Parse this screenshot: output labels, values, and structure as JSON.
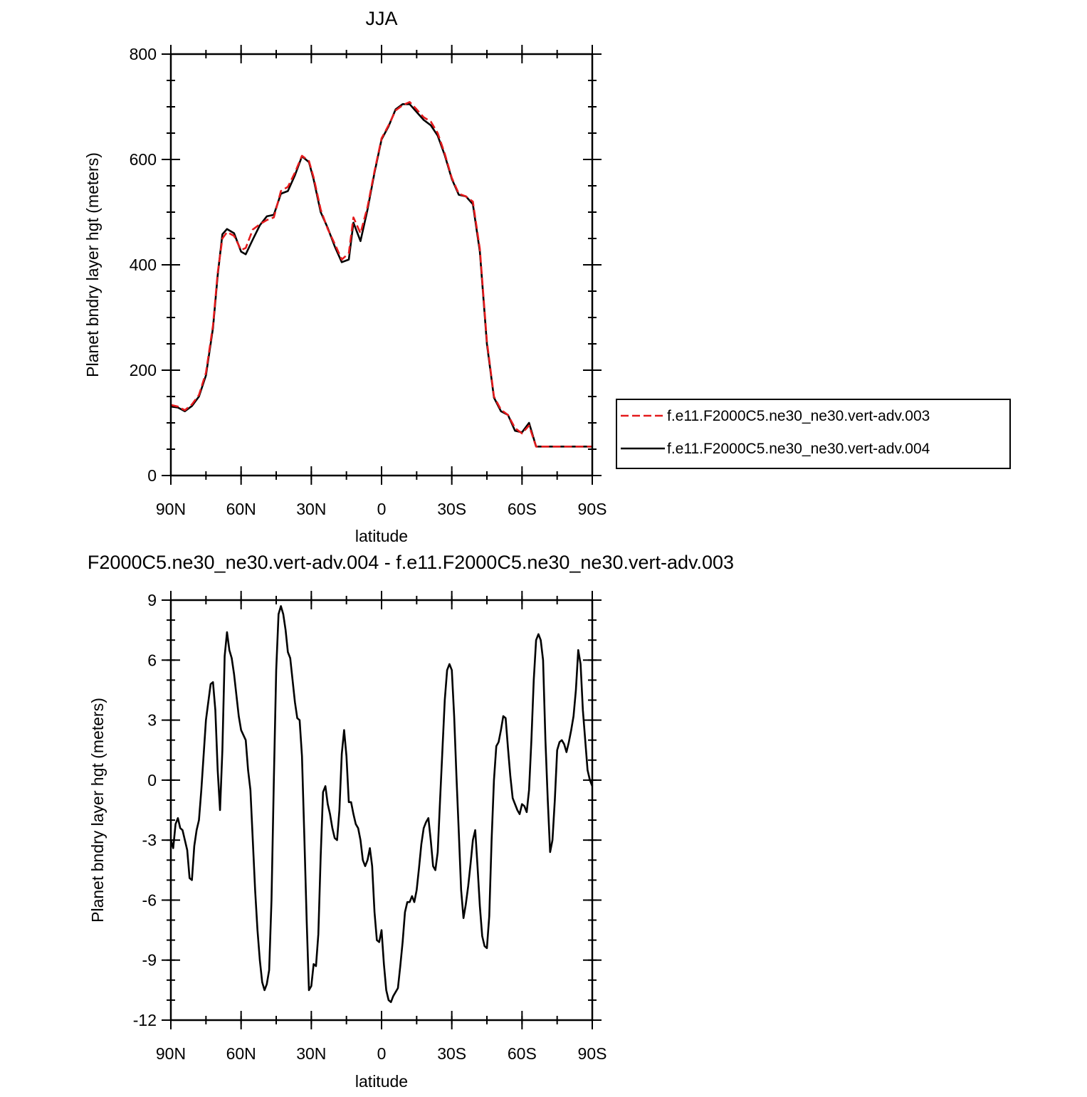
{
  "chart_data": [
    {
      "type": "line",
      "title": "JJA",
      "xlabel": "latitude",
      "ylabel": "Planet bndry layer hgt (meters)",
      "x_tick_labels": [
        "90N",
        "60N",
        "30N",
        "0",
        "30S",
        "60S",
        "90S"
      ],
      "x_ticks": [
        90,
        60,
        30,
        0,
        -30,
        -60,
        -90
      ],
      "xlim": [
        90,
        -90
      ],
      "y_ticks": [
        0,
        200,
        400,
        600,
        800
      ],
      "y_tick_labels": [
        "0",
        "200",
        "400",
        "600",
        "800"
      ],
      "ylim": [
        0,
        800
      ],
      "legend_position": "right",
      "x": [
        90,
        87,
        84,
        81,
        78,
        75,
        72,
        70,
        68,
        66,
        63,
        60,
        58,
        55,
        52,
        49,
        46,
        43,
        40,
        37,
        34,
        31,
        29,
        26,
        23,
        20,
        17,
        14,
        12,
        9,
        6,
        3,
        0,
        -3,
        -6,
        -9,
        -12,
        -15,
        -18,
        -21,
        -24,
        -27,
        -30,
        -33,
        -36,
        -39,
        -42,
        -45,
        -48,
        -51,
        -54,
        -57,
        -60,
        -63,
        -66,
        -69,
        -72,
        -75,
        -78,
        -81,
        -84,
        -87,
        -90
      ],
      "series": [
        {
          "name": "f.e11.F2000C5.ne30_ne30.vert-adv.003",
          "color": "#e41a1c",
          "dash": "dashed",
          "values": [
            134,
            131,
            124,
            135,
            153,
            195,
            285,
            385,
            450,
            462,
            455,
            428,
            432,
            467,
            477,
            485,
            490,
            540,
            548,
            575,
            607,
            597,
            566,
            505,
            468,
            440,
            410,
            422,
            490,
            460,
            510,
            578,
            640,
            665,
            693,
            703,
            709,
            695,
            680,
            672,
            650,
            611,
            565,
            535,
            530,
            520,
            430,
            255,
            150,
            125,
            115,
            90,
            80,
            95,
            55,
            55,
            55,
            55,
            55,
            55,
            55,
            55,
            55
          ]
        },
        {
          "name": "f.e11.F2000C5.ne30_ne30.vert-adv.004",
          "color": "#000000",
          "dash": "solid",
          "values": [
            131,
            129,
            122,
            132,
            150,
            190,
            280,
            380,
            458,
            468,
            460,
            425,
            420,
            448,
            475,
            492,
            495,
            535,
            540,
            570,
            606,
            595,
            562,
            500,
            470,
            435,
            405,
            410,
            480,
            445,
            505,
            575,
            638,
            663,
            695,
            705,
            705,
            690,
            675,
            665,
            645,
            608,
            563,
            533,
            530,
            515,
            425,
            250,
            148,
            122,
            115,
            85,
            82,
            100,
            55,
            55,
            55,
            55,
            55,
            55,
            55,
            55,
            55
          ]
        }
      ]
    },
    {
      "type": "line",
      "title": "F2000C5.ne30_ne30.vert-adv.004 - f.e11.F2000C5.ne30_ne30.vert-adv.003",
      "xlabel": "latitude",
      "ylabel": "Planet bndry layer hgt (meters)",
      "x_tick_labels": [
        "90N",
        "60N",
        "30N",
        "0",
        "30S",
        "60S",
        "90S"
      ],
      "x_ticks": [
        90,
        60,
        30,
        0,
        -30,
        -60,
        -90
      ],
      "xlim": [
        90,
        -90
      ],
      "y_ticks": [
        9,
        6,
        3,
        0,
        -3,
        -6,
        -9,
        -12
      ],
      "y_tick_labels": [
        "9",
        "6",
        "3",
        "0",
        "-3",
        "-6",
        "-9",
        "-12"
      ],
      "ylim": [
        -12,
        9
      ],
      "x": [
        90,
        89,
        88,
        87,
        86,
        85,
        83,
        82,
        81,
        80,
        79,
        78,
        77,
        75,
        73,
        72,
        71,
        70,
        69,
        68,
        67,
        66,
        65,
        64,
        63,
        61,
        60,
        58,
        57,
        56,
        55,
        54,
        53,
        52,
        51,
        50,
        49,
        48,
        47,
        46,
        45,
        44,
        43,
        42,
        41,
        40,
        39,
        38,
        37,
        36,
        35,
        34,
        33,
        32,
        31,
        30,
        29,
        28,
        27,
        26,
        25,
        24,
        23,
        22,
        21,
        20,
        19,
        18,
        17,
        16,
        15,
        14,
        13,
        12,
        11,
        10,
        9,
        8,
        7,
        6,
        5,
        4,
        3,
        2,
        1,
        0,
        -1,
        -2,
        -3,
        -4,
        -5,
        -6,
        -7,
        -8,
        -9,
        -10,
        -11,
        -12,
        -13,
        -14,
        -15,
        -16,
        -17,
        -18,
        -19,
        -20,
        -21,
        -22,
        -23,
        -24,
        -25,
        -26,
        -27,
        -28,
        -29,
        -30,
        -31,
        -32,
        -33,
        -34,
        -35,
        -36,
        -37,
        -38,
        -39,
        -40,
        -41,
        -42,
        -43,
        -44,
        -45,
        -46,
        -47,
        -48,
        -49,
        -50,
        -51,
        -52,
        -53,
        -54,
        -55,
        -56,
        -57,
        -58,
        -59,
        -60,
        -61,
        -62,
        -63,
        -64,
        -65,
        -66,
        -67,
        -68,
        -69,
        -70,
        -71,
        -72,
        -73,
        -74,
        -75,
        -76,
        -77,
        -78,
        -79,
        -80,
        -81,
        -82,
        -83,
        -84,
        -85,
        -86,
        -87,
        -88,
        -89,
        -90
      ],
      "series": [
        {
          "name": "",
          "color": "#000000",
          "dash": "solid",
          "values": [
            -3.0,
            -3.4,
            -2.2,
            -1.9,
            -2.4,
            -2.5,
            -3.5,
            -4.9,
            -5.0,
            -3.3,
            -2.5,
            -2.0,
            -0.5,
            3.0,
            4.8,
            4.9,
            3.5,
            0.5,
            -1.5,
            1.5,
            6.2,
            7.4,
            6.5,
            6.1,
            5.3,
            3.2,
            2.5,
            2.0,
            0.5,
            -0.5,
            -3.0,
            -5.5,
            -7.5,
            -9.0,
            -10.1,
            -10.5,
            -10.2,
            -9.5,
            -6.0,
            0.0,
            5.5,
            8.3,
            8.7,
            8.3,
            7.5,
            6.4,
            6.1,
            5.0,
            3.9,
            3.1,
            3.0,
            1.2,
            -2.8,
            -7.0,
            -10.5,
            -10.3,
            -9.2,
            -9.3,
            -7.7,
            -3.8,
            -0.6,
            -0.3,
            -1.2,
            -1.7,
            -2.4,
            -2.9,
            -3.0,
            -1.5,
            1.3,
            2.5,
            1.2,
            -1.1,
            -1.1,
            -1.7,
            -2.2,
            -2.4,
            -3.0,
            -4.0,
            -4.3,
            -4.0,
            -3.4,
            -4.3,
            -6.6,
            -8.0,
            -8.1,
            -7.5,
            -9.2,
            -10.5,
            -11.0,
            -11.1,
            -10.8,
            -10.6,
            -10.4,
            -9.3,
            -8.1,
            -6.6,
            -6.1,
            -6.1,
            -5.8,
            -6.1,
            -5.5,
            -4.4,
            -3.2,
            -2.4,
            -2.1,
            -1.9,
            -3.0,
            -4.3,
            -4.5,
            -3.6,
            -1.0,
            1.5,
            4.0,
            5.5,
            5.8,
            5.5,
            3.2,
            0.2,
            -2.6,
            -5.5,
            -6.9,
            -6.2,
            -5.3,
            -4.2,
            -3.0,
            -2.5,
            -4.3,
            -6.3,
            -7.8,
            -8.3,
            -8.4,
            -6.8,
            -3.0,
            0.0,
            1.7,
            1.9,
            2.5,
            3.2,
            3.1,
            1.6,
            0.2,
            -0.9,
            -1.2,
            -1.5,
            -1.7,
            -1.2,
            -1.3,
            -1.6,
            -0.5,
            2.0,
            5.0,
            7.0,
            7.3,
            7.0,
            6.0,
            2.0,
            -1.0,
            -3.6,
            -3.0,
            -1.0,
            1.5,
            1.9,
            2.0,
            1.8,
            1.4,
            1.9,
            2.5,
            3.2,
            4.5,
            6.5,
            5.8,
            3.5,
            2.0,
            0.5,
            0.0,
            -0.3
          ]
        }
      ]
    }
  ]
}
